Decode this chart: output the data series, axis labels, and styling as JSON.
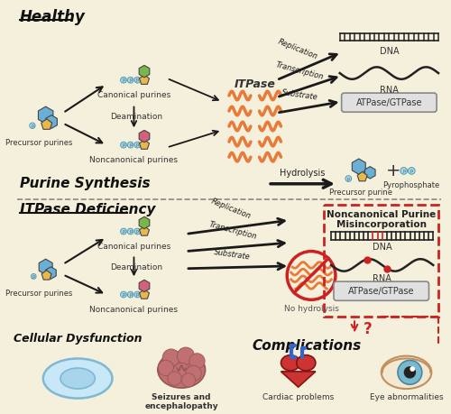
{
  "bg_color": "#f5f0dc",
  "title_healthy": "Healthy",
  "title_itpase": "ITPase Deficiency",
  "label_purine_synthesis": "Purine Synthesis",
  "label_cellular_dysfunction": "Cellular Dysfunction",
  "label_complications": "Complications",
  "label_precursor_purines": "Precursor purines",
  "label_canonical": "Canonical purines",
  "label_deamination": "Deamination",
  "label_noncanonical": "Noncanonical purines",
  "label_itpase": "ITPase",
  "label_replication": "Replication",
  "label_transcription": "Transcription",
  "label_substrate": "Substrate",
  "label_hydrolysis": "Hydrolysis",
  "label_no_hydrolysis": "No hydrolysis",
  "label_dna": "DNA",
  "label_rna": "RNA",
  "label_atpase": "ATPase/GTPase",
  "label_precursor_purine": "Precursor purine",
  "label_pyrophosphate": "Pyrophosphate",
  "label_plus": "+",
  "label_noncanonical_mis": "Noncanonical Purine\nMisincorporation",
  "label_question": "?",
  "label_seizures": "Seizures and\nencephalopathy",
  "label_cardiac": "Cardiac problems",
  "label_eye": "Eye abnormalities",
  "color_blue_purine": "#6aafd6",
  "color_green_purine": "#7ab648",
  "color_yellow_purine": "#e8b84b",
  "color_red_purine": "#d4607a",
  "color_orange_protein": "#e87b3a",
  "color_phosphate": "#a8d8ea",
  "color_arrow": "#1a1a1a",
  "color_dashed_red": "#cc2222",
  "color_section_divide": "#888888",
  "fig_w": 5.0,
  "fig_h": 4.59
}
